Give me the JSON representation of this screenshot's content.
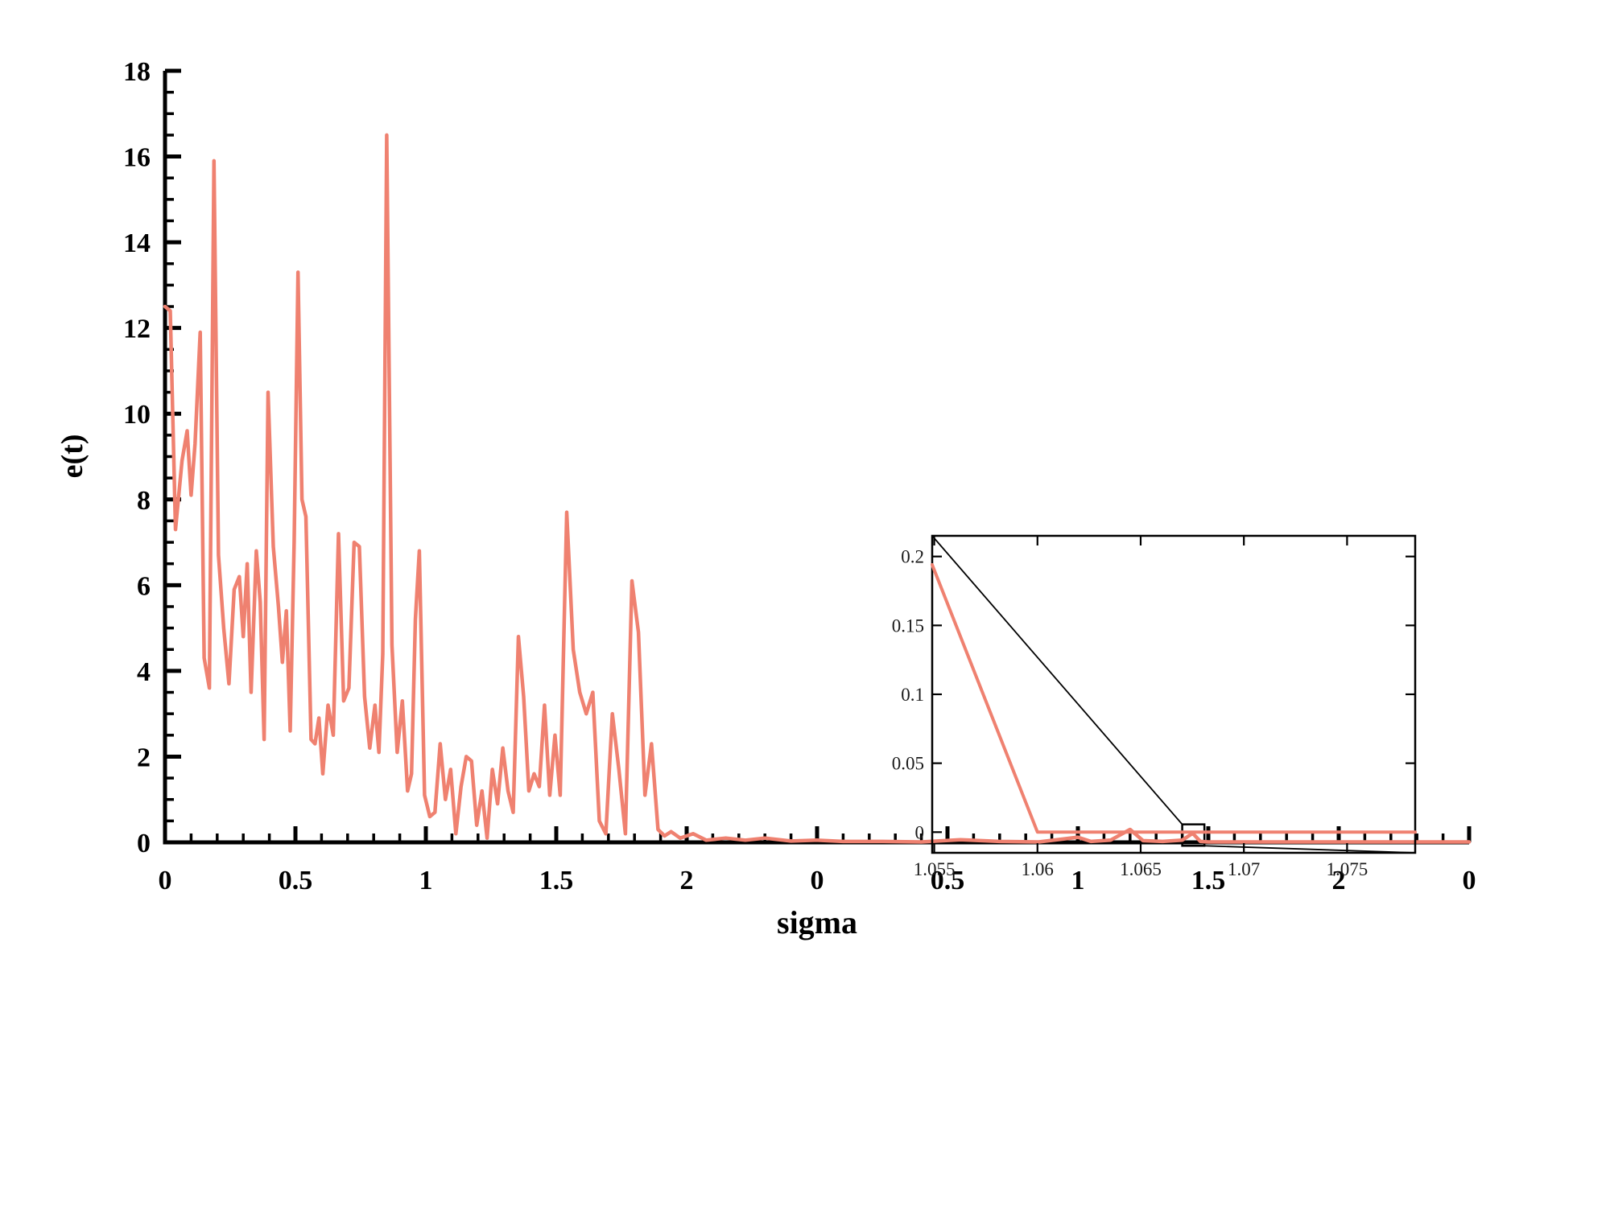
{
  "figure": {
    "background": "#ffffff"
  },
  "chart_data": {
    "type": "line",
    "title": "",
    "xlabel": "sigma",
    "ylabel": "e(t)",
    "line_color": "#EF8170",
    "axis_color": "#000000",
    "grid": false,
    "legend_position": "none",
    "main": {
      "x_range": [
        0,
        10
      ],
      "y_range": [
        0,
        18
      ],
      "x_major_ticks": [
        0,
        1,
        2,
        3,
        4,
        5,
        6,
        7,
        8,
        9,
        10
      ],
      "x_tick_labels": [
        "0",
        "0.5",
        "1",
        "1.5",
        "2",
        "0",
        "0.5",
        "1",
        "1.5",
        "2",
        "0"
      ],
      "x_minor_per_major": 4,
      "y_major_ticks": [
        0,
        2,
        4,
        6,
        8,
        10,
        12,
        14,
        16,
        18
      ],
      "y_tick_labels": [
        "0",
        "2",
        "4",
        "6",
        "8",
        "10",
        "12",
        "14",
        "16",
        "18"
      ],
      "y_minor_per_major": 3,
      "points": [
        [
          0,
          12.5
        ],
        [
          0.04,
          12.4
        ],
        [
          0.08,
          7.3
        ],
        [
          0.13,
          8.9
        ],
        [
          0.17,
          9.6
        ],
        [
          0.2,
          8.1
        ],
        [
          0.23,
          9.3
        ],
        [
          0.27,
          11.9
        ],
        [
          0.3,
          4.3
        ],
        [
          0.34,
          3.6
        ],
        [
          0.375,
          15.9
        ],
        [
          0.41,
          6.7
        ],
        [
          0.45,
          5.0
        ],
        [
          0.49,
          3.7
        ],
        [
          0.53,
          5.9
        ],
        [
          0.57,
          6.2
        ],
        [
          0.6,
          4.8
        ],
        [
          0.63,
          6.5
        ],
        [
          0.66,
          3.5
        ],
        [
          0.7,
          6.8
        ],
        [
          0.73,
          5.6
        ],
        [
          0.76,
          2.4
        ],
        [
          0.79,
          10.5
        ],
        [
          0.83,
          6.9
        ],
        [
          0.87,
          5.5
        ],
        [
          0.9,
          4.2
        ],
        [
          0.93,
          5.4
        ],
        [
          0.96,
          2.6
        ],
        [
          0.99,
          7.0
        ],
        [
          1.02,
          13.3
        ],
        [
          1.05,
          8.0
        ],
        [
          1.08,
          7.6
        ],
        [
          1.12,
          2.4
        ],
        [
          1.15,
          2.3
        ],
        [
          1.18,
          2.9
        ],
        [
          1.21,
          1.6
        ],
        [
          1.25,
          3.2
        ],
        [
          1.29,
          2.5
        ],
        [
          1.33,
          7.2
        ],
        [
          1.37,
          3.3
        ],
        [
          1.41,
          3.6
        ],
        [
          1.45,
          7.0
        ],
        [
          1.49,
          6.9
        ],
        [
          1.53,
          3.4
        ],
        [
          1.57,
          2.2
        ],
        [
          1.61,
          3.2
        ],
        [
          1.64,
          2.1
        ],
        [
          1.67,
          4.4
        ],
        [
          1.7,
          16.5
        ],
        [
          1.74,
          4.6
        ],
        [
          1.78,
          2.1
        ],
        [
          1.82,
          3.3
        ],
        [
          1.86,
          1.2
        ],
        [
          1.89,
          1.6
        ],
        [
          1.92,
          5.2
        ],
        [
          1.95,
          6.8
        ],
        [
          1.99,
          1.1
        ],
        [
          2.03,
          0.6
        ],
        [
          2.07,
          0.7
        ],
        [
          2.11,
          2.3
        ],
        [
          2.15,
          1.0
        ],
        [
          2.19,
          1.7
        ],
        [
          2.23,
          0.2
        ],
        [
          2.27,
          1.3
        ],
        [
          2.31,
          2.0
        ],
        [
          2.35,
          1.9
        ],
        [
          2.39,
          0.4
        ],
        [
          2.43,
          1.2
        ],
        [
          2.47,
          0.1
        ],
        [
          2.51,
          1.7
        ],
        [
          2.55,
          0.9
        ],
        [
          2.59,
          2.2
        ],
        [
          2.63,
          1.2
        ],
        [
          2.67,
          0.7
        ],
        [
          2.71,
          4.8
        ],
        [
          2.75,
          3.4
        ],
        [
          2.79,
          1.2
        ],
        [
          2.83,
          1.6
        ],
        [
          2.87,
          1.3
        ],
        [
          2.91,
          3.2
        ],
        [
          2.95,
          1.1
        ],
        [
          2.99,
          2.5
        ],
        [
          3.03,
          1.1
        ],
        [
          3.08,
          7.7
        ],
        [
          3.13,
          4.5
        ],
        [
          3.18,
          3.5
        ],
        [
          3.23,
          3.0
        ],
        [
          3.28,
          3.5
        ],
        [
          3.33,
          0.5
        ],
        [
          3.38,
          0.2
        ],
        [
          3.43,
          3.0
        ],
        [
          3.48,
          1.7
        ],
        [
          3.53,
          0.2
        ],
        [
          3.58,
          6.1
        ],
        [
          3.63,
          4.9
        ],
        [
          3.68,
          1.1
        ],
        [
          3.73,
          2.3
        ],
        [
          3.78,
          0.3
        ],
        [
          3.83,
          0.15
        ],
        [
          3.88,
          0.25
        ],
        [
          3.95,
          0.1
        ],
        [
          4.05,
          0.2
        ],
        [
          4.15,
          0.05
        ],
        [
          4.3,
          0.1
        ],
        [
          4.45,
          0.05
        ],
        [
          4.6,
          0.1
        ],
        [
          4.8,
          0.03
        ],
        [
          5.0,
          0.05
        ],
        [
          5.2,
          0.02
        ],
        [
          5.5,
          0.02
        ],
        [
          5.8,
          0.01
        ],
        [
          6.1,
          0.06
        ],
        [
          6.4,
          0.02
        ],
        [
          6.7,
          0.01
        ],
        [
          7.0,
          0.12
        ],
        [
          7.1,
          0.02
        ],
        [
          7.25,
          0.05
        ],
        [
          7.4,
          0.3
        ],
        [
          7.5,
          0.04
        ],
        [
          7.65,
          0.02
        ],
        [
          7.8,
          0.05
        ],
        [
          7.88,
          0.21
        ],
        [
          7.94,
          0.02
        ],
        [
          8.0,
          0.01
        ],
        [
          8.3,
          0.01
        ],
        [
          8.7,
          0.01
        ],
        [
          9.1,
          0.01
        ],
        [
          9.5,
          0.01
        ],
        [
          10,
          0.01
        ]
      ]
    },
    "inset": {
      "x_range": [
        1.0549,
        1.0783
      ],
      "y_range": [
        -0.015,
        0.215
      ],
      "x_ticks": [
        1.055,
        1.06,
        1.065,
        1.07,
        1.075
      ],
      "x_tick_labels": [
        "1.055",
        "1.06",
        "1.065",
        "1.07",
        "1.075"
      ],
      "y_ticks": [
        0,
        0.05,
        0.1,
        0.15,
        0.2
      ],
      "y_tick_labels": [
        "0",
        "0.05",
        "0.1",
        "0.15",
        "0.2"
      ],
      "points": [
        [
          1.0549,
          0.194
        ],
        [
          1.06,
          0.0
        ],
        [
          1.0783,
          0.0
        ]
      ]
    },
    "callout": {
      "region_x": [
        7.8,
        7.97
      ],
      "region_y": [
        -0.08,
        0.42
      ]
    }
  }
}
